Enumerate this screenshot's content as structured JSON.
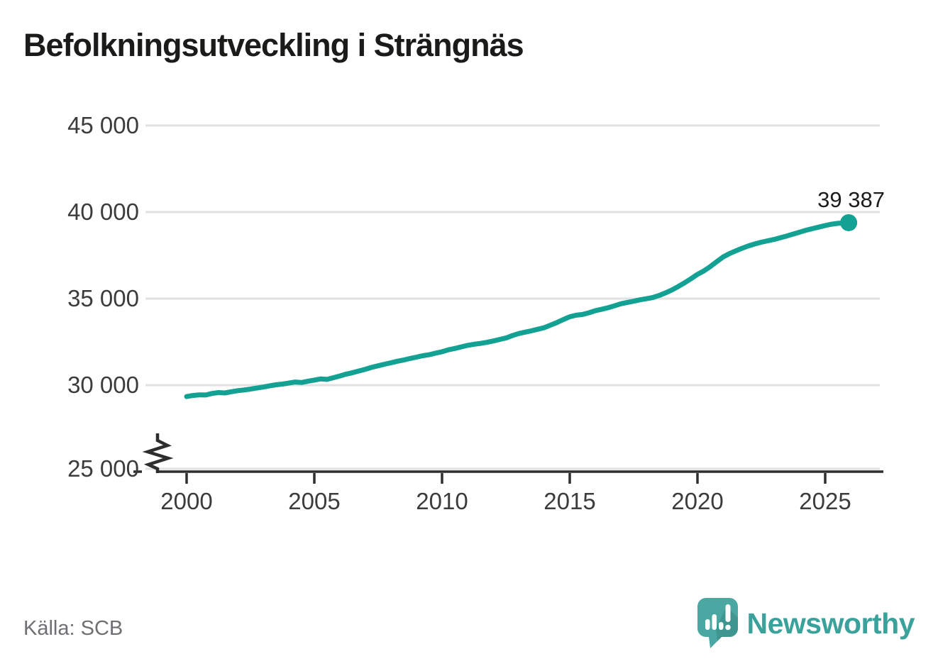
{
  "title": "Befolkningsutveckling i Strängnäs",
  "source": "Källa: SCB",
  "branding": {
    "logo_text": "Newsworthy",
    "logo_icon": "newsworthy-speech-bubble-chart-icon"
  },
  "colors": {
    "line": "#12a192",
    "grid": "#e2e2e2",
    "axis": "#2e2e2e",
    "tick_label": "#3c3c3c",
    "title": "#1b1b19",
    "source_text": "#6f6f74",
    "brand_teal": "#3aa29b",
    "brand_bubble": "#4ba7a1",
    "brand_bubble_shade": "#3f958f"
  },
  "chart_data": {
    "type": "line",
    "title": "Befolkningsutveckling i Strängnäs",
    "series_name": "Befolkning i Strängnäs",
    "xlabel": "",
    "ylabel": "",
    "grid": "horizontal",
    "axis_break_at_bottom": true,
    "ylim": [
      25000,
      45000
    ],
    "yticks": [
      25000,
      30000,
      35000,
      40000,
      45000
    ],
    "ytick_labels": [
      "25 000",
      "30 000",
      "35 000",
      "40 000",
      "45 000"
    ],
    "xticks": [
      2000,
      2005,
      2010,
      2015,
      2020,
      2025
    ],
    "xtick_labels": [
      "2000",
      "2005",
      "2010",
      "2015",
      "2020",
      "2025"
    ],
    "end_point": {
      "x": 2025.92,
      "y": 39387,
      "label": "39 387"
    },
    "points": [
      [
        2000.0,
        29340
      ],
      [
        2000.25,
        29400
      ],
      [
        2000.5,
        29440
      ],
      [
        2000.75,
        29430
      ],
      [
        2001.0,
        29520
      ],
      [
        2001.25,
        29570
      ],
      [
        2001.5,
        29550
      ],
      [
        2001.75,
        29620
      ],
      [
        2002.0,
        29680
      ],
      [
        2002.25,
        29720
      ],
      [
        2002.5,
        29770
      ],
      [
        2002.75,
        29830
      ],
      [
        2003.0,
        29890
      ],
      [
        2003.25,
        29960
      ],
      [
        2003.5,
        30020
      ],
      [
        2003.75,
        30060
      ],
      [
        2004.0,
        30120
      ],
      [
        2004.25,
        30180
      ],
      [
        2004.5,
        30150
      ],
      [
        2004.75,
        30230
      ],
      [
        2005.0,
        30290
      ],
      [
        2005.25,
        30360
      ],
      [
        2005.5,
        30330
      ],
      [
        2005.75,
        30430
      ],
      [
        2006.0,
        30530
      ],
      [
        2006.25,
        30640
      ],
      [
        2006.5,
        30720
      ],
      [
        2006.75,
        30820
      ],
      [
        2007.0,
        30920
      ],
      [
        2007.25,
        31030
      ],
      [
        2007.5,
        31120
      ],
      [
        2007.75,
        31210
      ],
      [
        2008.0,
        31290
      ],
      [
        2008.25,
        31380
      ],
      [
        2008.5,
        31450
      ],
      [
        2008.75,
        31540
      ],
      [
        2009.0,
        31620
      ],
      [
        2009.25,
        31700
      ],
      [
        2009.5,
        31760
      ],
      [
        2009.75,
        31850
      ],
      [
        2010.0,
        31930
      ],
      [
        2010.25,
        32040
      ],
      [
        2010.5,
        32120
      ],
      [
        2010.75,
        32210
      ],
      [
        2011.0,
        32300
      ],
      [
        2011.25,
        32360
      ],
      [
        2011.5,
        32410
      ],
      [
        2011.75,
        32470
      ],
      [
        2012.0,
        32550
      ],
      [
        2012.25,
        32640
      ],
      [
        2012.5,
        32720
      ],
      [
        2012.75,
        32860
      ],
      [
        2013.0,
        32980
      ],
      [
        2013.25,
        33060
      ],
      [
        2013.5,
        33140
      ],
      [
        2013.75,
        33230
      ],
      [
        2014.0,
        33320
      ],
      [
        2014.25,
        33470
      ],
      [
        2014.5,
        33620
      ],
      [
        2014.75,
        33790
      ],
      [
        2015.0,
        33950
      ],
      [
        2015.25,
        34040
      ],
      [
        2015.5,
        34080
      ],
      [
        2015.75,
        34180
      ],
      [
        2016.0,
        34300
      ],
      [
        2016.25,
        34380
      ],
      [
        2016.5,
        34470
      ],
      [
        2016.75,
        34580
      ],
      [
        2017.0,
        34700
      ],
      [
        2017.25,
        34780
      ],
      [
        2017.5,
        34850
      ],
      [
        2017.75,
        34930
      ],
      [
        2018.0,
        34990
      ],
      [
        2018.25,
        35060
      ],
      [
        2018.5,
        35180
      ],
      [
        2018.75,
        35330
      ],
      [
        2019.0,
        35500
      ],
      [
        2019.25,
        35700
      ],
      [
        2019.5,
        35920
      ],
      [
        2019.75,
        36150
      ],
      [
        2020.0,
        36400
      ],
      [
        2020.25,
        36600
      ],
      [
        2020.5,
        36850
      ],
      [
        2020.75,
        37130
      ],
      [
        2021.0,
        37400
      ],
      [
        2021.25,
        37600
      ],
      [
        2021.5,
        37760
      ],
      [
        2021.75,
        37910
      ],
      [
        2022.0,
        38050
      ],
      [
        2022.25,
        38160
      ],
      [
        2022.5,
        38260
      ],
      [
        2022.75,
        38340
      ],
      [
        2023.0,
        38420
      ],
      [
        2023.25,
        38520
      ],
      [
        2023.5,
        38620
      ],
      [
        2023.75,
        38730
      ],
      [
        2024.0,
        38840
      ],
      [
        2024.25,
        38950
      ],
      [
        2024.5,
        39040
      ],
      [
        2024.75,
        39130
      ],
      [
        2025.0,
        39220
      ],
      [
        2025.25,
        39300
      ],
      [
        2025.5,
        39350
      ],
      [
        2025.75,
        39375
      ],
      [
        2025.92,
        39387
      ]
    ]
  }
}
